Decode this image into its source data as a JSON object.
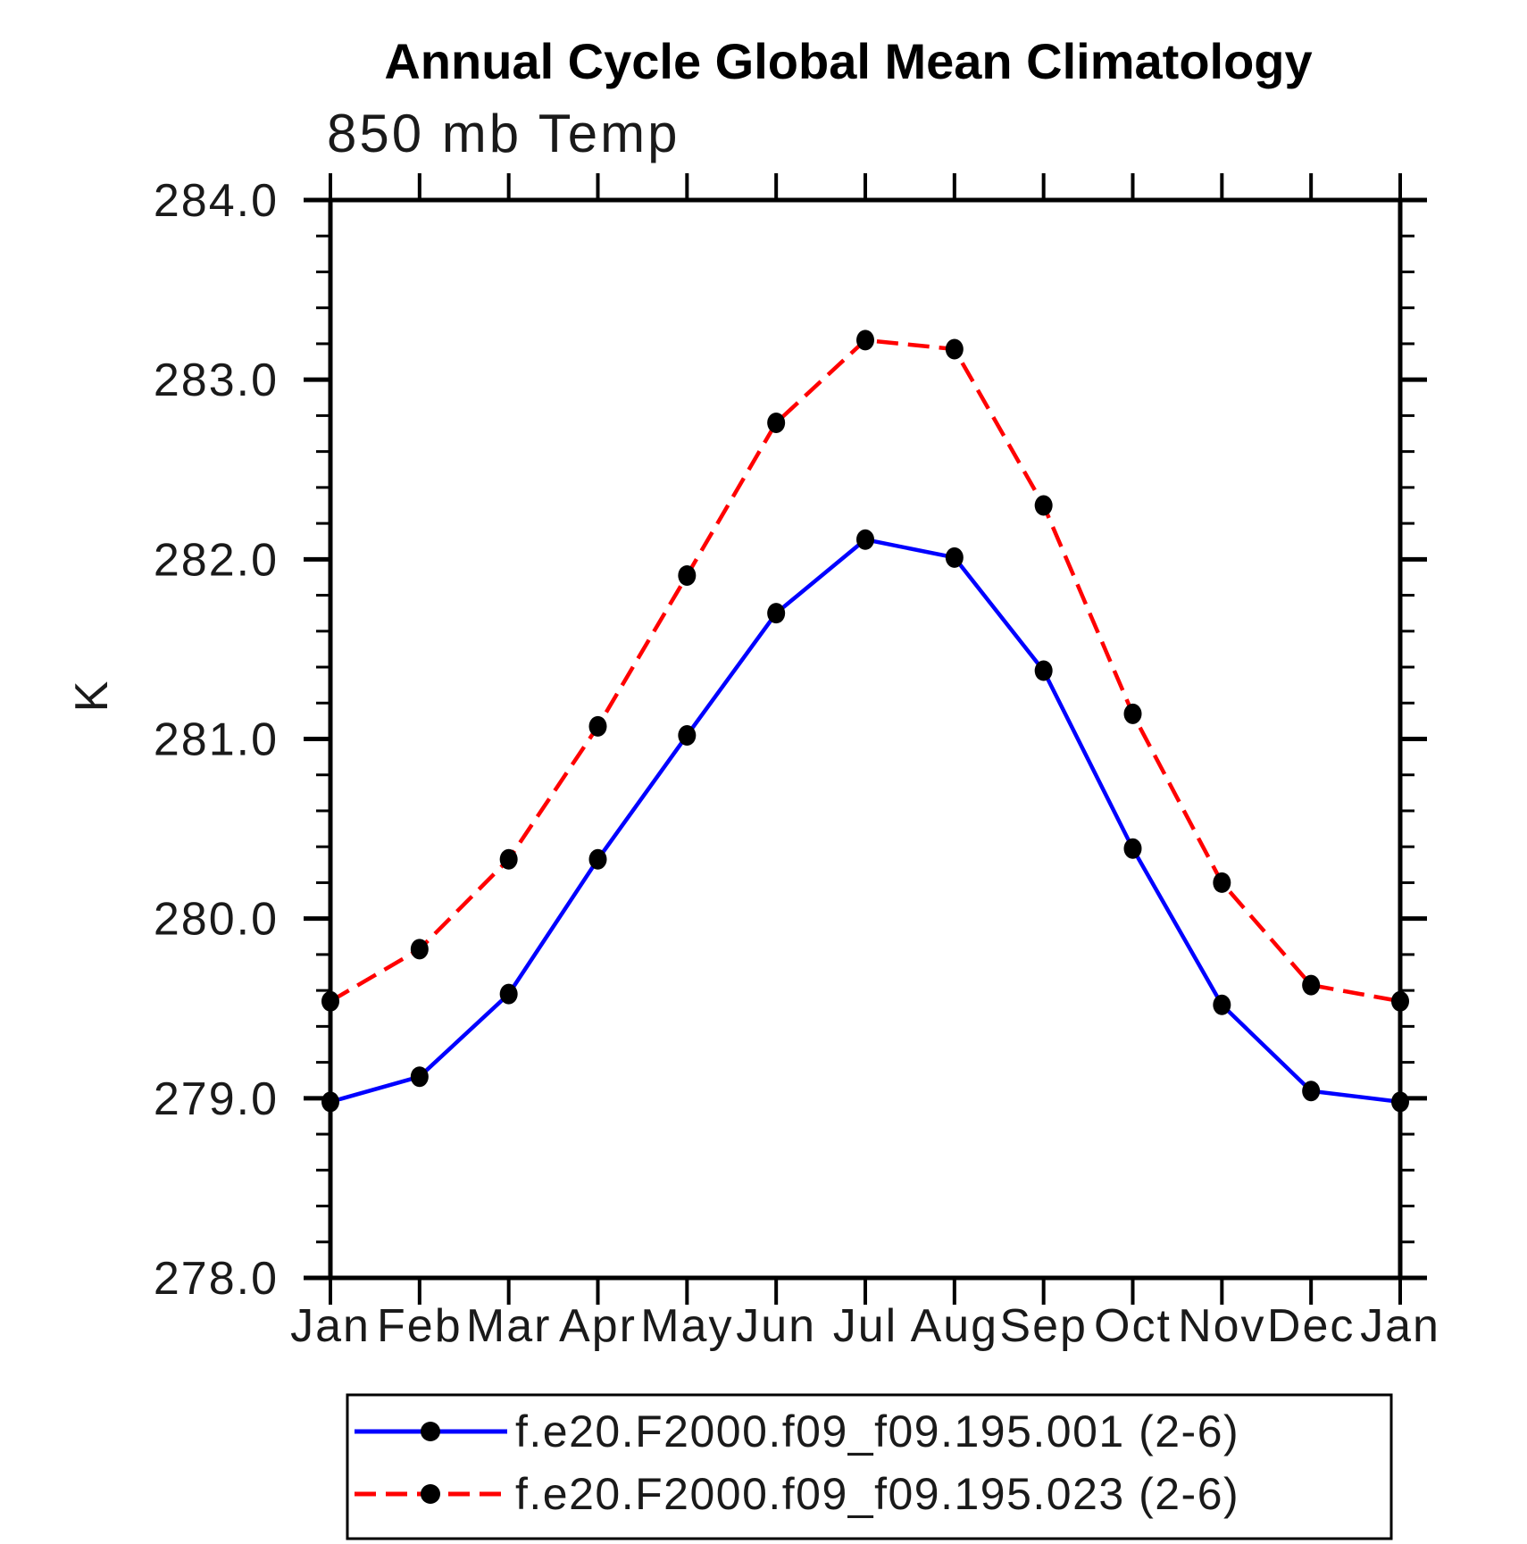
{
  "page": {
    "background_color": "#ffffff",
    "axis_color": "#000000",
    "marker_color": "#000000"
  },
  "chart_data": {
    "type": "line",
    "title": "Annual Cycle Global Mean Climatology",
    "subtitle": "850 mb Temp",
    "ylabel": "K",
    "x_categories": [
      "Jan",
      "Feb",
      "Mar",
      "Apr",
      "May",
      "Jun",
      "Jul",
      "Aug",
      "Sep",
      "Oct",
      "Nov",
      "Dec",
      "Jan"
    ],
    "ylim": [
      278.0,
      284.0
    ],
    "ytick_major_interval": 1.0,
    "ytick_minor_interval": 0.2,
    "ytick_labels": [
      "278.0",
      "279.0",
      "280.0",
      "281.0",
      "282.0",
      "283.0",
      "284.0"
    ],
    "grid": false,
    "legend_position": "bottom",
    "series": [
      {
        "name": "f.e20.F2000.f09_f09.195.001 (2-6)",
        "color": "#0000ff",
        "line_style": "solid",
        "marker": "filled-circle",
        "marker_color": "#000000",
        "values": [
          278.98,
          279.12,
          279.58,
          280.33,
          281.02,
          281.7,
          282.11,
          282.01,
          281.38,
          280.39,
          279.52,
          279.04,
          278.98
        ]
      },
      {
        "name": "f.e20.F2000.f09_f09.195.023 (2-6)",
        "color": "#ff0000",
        "line_style": "dashed",
        "marker": "filled-circle",
        "marker_color": "#000000",
        "values": [
          279.54,
          279.83,
          280.33,
          281.07,
          281.91,
          282.76,
          283.22,
          283.17,
          282.3,
          281.14,
          280.2,
          279.63,
          279.54
        ]
      }
    ]
  }
}
